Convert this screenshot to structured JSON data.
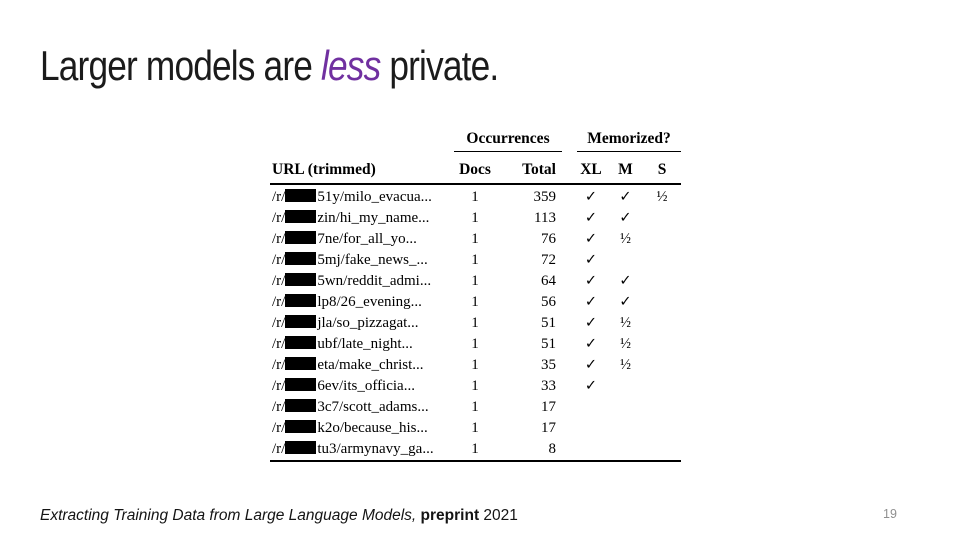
{
  "slide": {
    "title": {
      "prefix": "Larger models are ",
      "highlight": "less",
      "suffix": " private."
    },
    "accent_color": "#7030A0",
    "footer": {
      "citation_italic": "Extracting Training Data from Large Language Models,",
      "citation_bold": "preprint",
      "citation_year": "2021"
    },
    "page_number": "19"
  },
  "table": {
    "group_headers": [
      {
        "label": "Occurrences"
      },
      {
        "label": "Memorized?"
      }
    ],
    "columns": {
      "url": "URL (trimmed)",
      "docs": "Docs",
      "total": "Total",
      "xl": "XL",
      "m": "M",
      "s": "S"
    },
    "rows": [
      {
        "url_prefix": "/r/",
        "redacted": true,
        "url_suffix": "51y/milo_evacua...",
        "docs": "1",
        "total": "359",
        "xl": "✓",
        "m": "✓",
        "s": "½"
      },
      {
        "url_prefix": "/r/",
        "redacted": true,
        "url_suffix": "zin/hi_my_name...",
        "docs": "1",
        "total": "113",
        "xl": "✓",
        "m": "✓",
        "s": ""
      },
      {
        "url_prefix": "/r/",
        "redacted": true,
        "url_suffix": "7ne/for_all_yo...",
        "docs": "1",
        "total": "76",
        "xl": "✓",
        "m": "½",
        "s": ""
      },
      {
        "url_prefix": "/r/",
        "redacted": true,
        "url_suffix": "5mj/fake_news_...",
        "docs": "1",
        "total": "72",
        "xl": "✓",
        "m": "",
        "s": ""
      },
      {
        "url_prefix": "/r/",
        "redacted": true,
        "url_suffix": "5wn/reddit_admi...",
        "docs": "1",
        "total": "64",
        "xl": "✓",
        "m": "✓",
        "s": ""
      },
      {
        "url_prefix": "/r/",
        "redacted": true,
        "url_suffix": "lp8/26_evening...",
        "docs": "1",
        "total": "56",
        "xl": "✓",
        "m": "✓",
        "s": ""
      },
      {
        "url_prefix": "/r/",
        "redacted": true,
        "url_suffix": "jla/so_pizzagat...",
        "docs": "1",
        "total": "51",
        "xl": "✓",
        "m": "½",
        "s": ""
      },
      {
        "url_prefix": "/r/",
        "redacted": true,
        "url_suffix": "ubf/late_night...",
        "docs": "1",
        "total": "51",
        "xl": "✓",
        "m": "½",
        "s": ""
      },
      {
        "url_prefix": "/r/",
        "redacted": true,
        "url_suffix": "eta/make_christ...",
        "docs": "1",
        "total": "35",
        "xl": "✓",
        "m": "½",
        "s": ""
      },
      {
        "url_prefix": "/r/",
        "redacted": true,
        "url_suffix": "6ev/its_officia...",
        "docs": "1",
        "total": "33",
        "xl": "✓",
        "m": "",
        "s": ""
      },
      {
        "url_prefix": "/r/",
        "redacted": true,
        "url_suffix": "3c7/scott_adams...",
        "docs": "1",
        "total": "17",
        "xl": "",
        "m": "",
        "s": ""
      },
      {
        "url_prefix": "/r/",
        "redacted": true,
        "url_suffix": "k2o/because_his...",
        "docs": "1",
        "total": "17",
        "xl": "",
        "m": "",
        "s": ""
      },
      {
        "url_prefix": "/r/",
        "redacted": true,
        "url_suffix": "tu3/armynavy_ga...",
        "docs": "1",
        "total": "8",
        "xl": "",
        "m": "",
        "s": ""
      }
    ]
  }
}
